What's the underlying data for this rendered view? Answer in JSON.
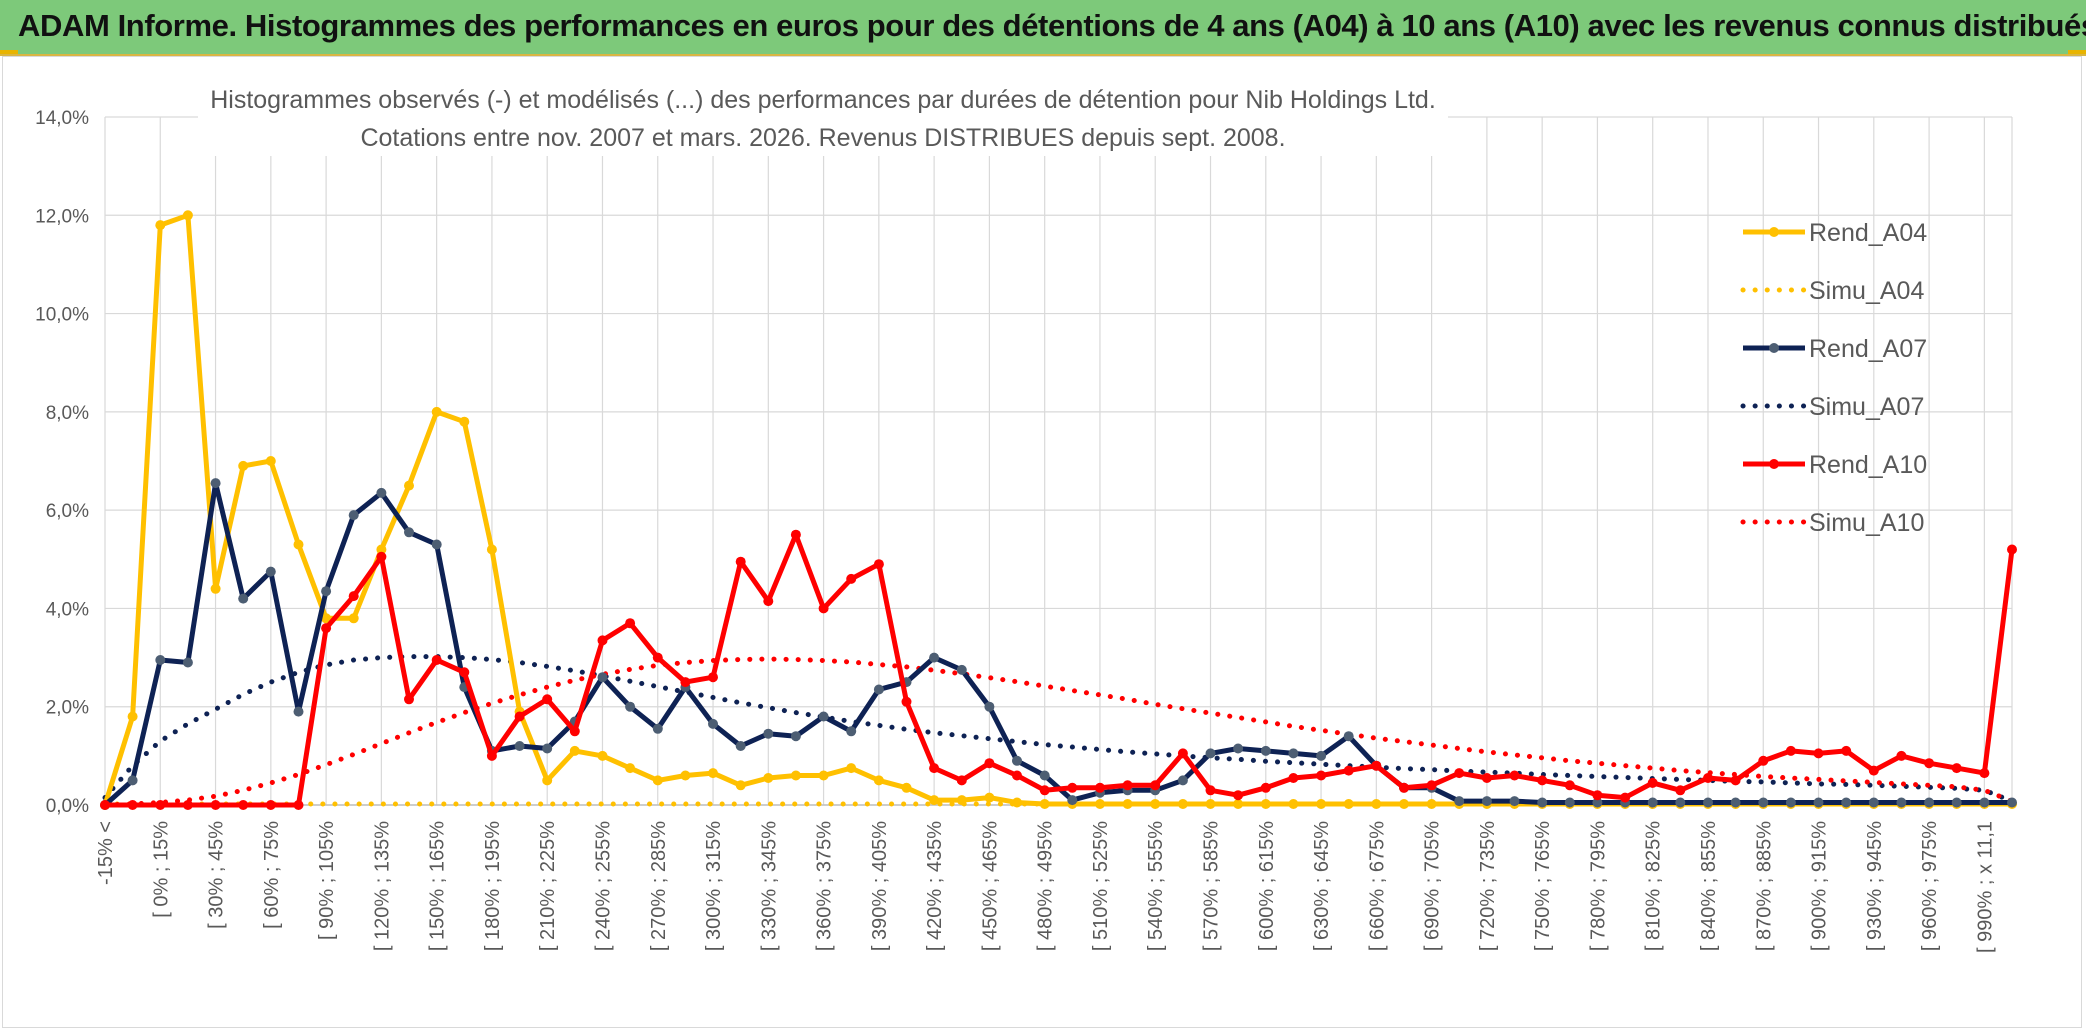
{
  "header": {
    "title": "ADAM Informe. Histogrammes des performances en euros pour des détentions de 4 ans (A04) à 10 ans (A10) avec les revenus connus distribués"
  },
  "colors": {
    "banner": "#7dc97a",
    "A04": "#ffc000",
    "A07": "#0e2254",
    "A07_marker": "#4d5e73",
    "A10": "#ff0000",
    "grid": "#d9d9d9",
    "text": "#595959"
  },
  "chart_data": {
    "type": "line",
    "title_line1": "Histogrammes observés (-) et modélisés (...) des performances par durées de détention pour Nib Holdings Ltd.",
    "title_line2": "Cotations entre nov. 2007 et mars. 2026. Revenus DISTRIBUES depuis sept. 2008.",
    "xlabel": "",
    "ylabel": "",
    "ylim": [
      0,
      14
    ],
    "y_ticks": [
      "0,0%",
      "2,0%",
      "4,0%",
      "6,0%",
      "8,0%",
      "10,0%",
      "12,0%",
      "14,0%"
    ],
    "x_labels_shown": [
      "-15% <",
      "[ 0% ; 15%",
      "[ 30% ; 45%",
      "[ 60% ; 75%",
      "[ 90% ; 105%",
      "[ 120% ; 135%",
      "[ 150% ; 165%",
      "[ 180% ; 195%",
      "[ 210% ; 225%",
      "[ 240% ; 255%",
      "[ 270% ; 285%",
      "[ 300% ; 315%",
      "[ 330% ; 345%",
      "[ 360% ; 375%",
      "[ 390% ; 405%",
      "[ 420% ; 435%",
      "[ 450% ; 465%",
      "[ 480% ; 495%",
      "[ 510% ; 525%",
      "[ 540% ; 555%",
      "[ 570% ; 585%",
      "[ 600% ; 615%",
      "[ 630% ; 645%",
      "[ 660% ; 675%",
      "[ 690% ; 705%",
      "[ 720% ; 735%",
      "[ 750% ; 765%",
      "[ 780% ; 795%",
      "[ 810% ; 825%",
      "[ 840% ; 855%",
      "[ 870% ; 885%",
      "[ 900% ; 915%",
      "[ 930% ; 945%",
      "[ 960% ; 975%",
      "[ 990% ; x 11,1"
    ],
    "n_points": 70,
    "series": [
      {
        "name": "Rend_A04",
        "style": "solid",
        "color": "#ffc000",
        "values": [
          0.0,
          1.8,
          11.8,
          12.0,
          4.4,
          6.9,
          7.0,
          5.3,
          3.8,
          3.8,
          5.2,
          6.5,
          8.0,
          7.8,
          5.2,
          1.9,
          0.5,
          1.1,
          1.0,
          0.75,
          0.5,
          0.6,
          0.65,
          0.4,
          0.55,
          0.6,
          0.6,
          0.75,
          0.5,
          0.35,
          0.1,
          0.1,
          0.15,
          0.05,
          0.02,
          0.02,
          0.02,
          0.02,
          0.02,
          0.02,
          0.02,
          0.02,
          0.02,
          0.02,
          0.02,
          0.02,
          0.02,
          0.02,
          0.02,
          0.02,
          0.02,
          0.02,
          0.02,
          0.02,
          0.02,
          0.02,
          0.02,
          0.02,
          0.02,
          0.02,
          0.02,
          0.02,
          0.02,
          0.02,
          0.02,
          0.02,
          0.02,
          0.02,
          0.02,
          0.02
        ]
      },
      {
        "name": "Simu_A04",
        "style": "dotted",
        "color": "#ffc000",
        "values": [
          0.02,
          0.02,
          0.02,
          0.02,
          0.02,
          0.02,
          0.02,
          0.02,
          0.02,
          0.02,
          0.02,
          0.02,
          0.02,
          0.02,
          0.02,
          0.02,
          0.02,
          0.02,
          0.02,
          0.02,
          0.02,
          0.02,
          0.02,
          0.02,
          0.02,
          0.02,
          0.02,
          0.02,
          0.02,
          0.02,
          0.02,
          0.02,
          0.02,
          0.02,
          0.02,
          0.02,
          0.02,
          0.02,
          0.02,
          0.02,
          0.02,
          0.02,
          0.02,
          0.02,
          0.02,
          0.02,
          0.02,
          0.02,
          0.02,
          0.02,
          0.02,
          0.02,
          0.02,
          0.02,
          0.02,
          0.02,
          0.02,
          0.02,
          0.02,
          0.02,
          0.02,
          0.02,
          0.02,
          0.02,
          0.02,
          0.02,
          0.02,
          0.02,
          0.02,
          0.02
        ]
      },
      {
        "name": "Rend_A07",
        "style": "solid",
        "color": "#0e2254",
        "values": [
          0.0,
          0.5,
          2.95,
          2.9,
          6.55,
          4.2,
          4.75,
          1.9,
          4.35,
          5.9,
          6.35,
          5.55,
          5.3,
          2.4,
          1.1,
          1.2,
          1.15,
          1.7,
          2.6,
          2.0,
          1.55,
          2.4,
          1.65,
          1.2,
          1.45,
          1.4,
          1.8,
          1.5,
          2.35,
          2.5,
          3.0,
          2.75,
          2.0,
          0.9,
          0.6,
          0.1,
          0.25,
          0.3,
          0.3,
          0.5,
          1.05,
          1.15,
          1.1,
          1.05,
          1.0,
          1.4,
          0.8,
          0.35,
          0.35,
          0.08,
          0.08,
          0.08,
          0.05,
          0.05,
          0.05,
          0.05,
          0.05,
          0.05,
          0.05,
          0.05,
          0.05,
          0.05,
          0.05,
          0.05,
          0.05,
          0.05,
          0.05,
          0.05,
          0.05,
          0.05
        ]
      },
      {
        "name": "Simu_A07",
        "style": "dotted",
        "color": "#0e2254",
        "values": [
          0.15,
          0.8,
          1.3,
          1.65,
          1.95,
          2.25,
          2.5,
          2.7,
          2.85,
          2.95,
          3.0,
          3.02,
          3.02,
          3.0,
          2.96,
          2.9,
          2.82,
          2.73,
          2.63,
          2.52,
          2.41,
          2.3,
          2.19,
          2.08,
          1.98,
          1.88,
          1.79,
          1.7,
          1.62,
          1.54,
          1.47,
          1.41,
          1.35,
          1.29,
          1.23,
          1.18,
          1.13,
          1.08,
          1.04,
          1.0,
          0.96,
          0.93,
          0.89,
          0.86,
          0.83,
          0.8,
          0.77,
          0.74,
          0.72,
          0.69,
          0.67,
          0.65,
          0.62,
          0.6,
          0.58,
          0.56,
          0.54,
          0.52,
          0.5,
          0.48,
          0.47,
          0.45,
          0.43,
          0.42,
          0.4,
          0.38,
          0.36,
          0.34,
          0.3,
          0.08
        ]
      },
      {
        "name": "Rend_A10",
        "style": "solid",
        "color": "#ff0000",
        "values": [
          0.0,
          0.0,
          0.0,
          0.0,
          0.0,
          0.0,
          0.0,
          0.0,
          3.6,
          4.25,
          5.05,
          2.15,
          2.95,
          2.7,
          1.0,
          1.8,
          2.15,
          1.5,
          3.35,
          3.7,
          3.0,
          2.5,
          2.6,
          4.95,
          4.15,
          5.5,
          4.0,
          4.6,
          4.9,
          2.1,
          0.75,
          0.5,
          0.85,
          0.6,
          0.3,
          0.35,
          0.35,
          0.4,
          0.4,
          1.05,
          0.3,
          0.2,
          0.35,
          0.55,
          0.6,
          0.7,
          0.8,
          0.35,
          0.4,
          0.65,
          0.55,
          0.6,
          0.5,
          0.4,
          0.2,
          0.15,
          0.45,
          0.3,
          0.55,
          0.5,
          0.9,
          1.1,
          1.05,
          1.1,
          0.7,
          1.0,
          0.85,
          0.75,
          0.65,
          5.2
        ]
      },
      {
        "name": "Simu_A10",
        "style": "dotted",
        "color": "#ff0000",
        "values": [
          0.0,
          0.02,
          0.05,
          0.1,
          0.18,
          0.3,
          0.45,
          0.62,
          0.82,
          1.03,
          1.25,
          1.47,
          1.68,
          1.88,
          2.07,
          2.24,
          2.4,
          2.54,
          2.66,
          2.76,
          2.84,
          2.9,
          2.94,
          2.96,
          2.97,
          2.96,
          2.94,
          2.91,
          2.86,
          2.81,
          2.74,
          2.67,
          2.59,
          2.51,
          2.42,
          2.33,
          2.24,
          2.15,
          2.05,
          1.96,
          1.87,
          1.78,
          1.69,
          1.6,
          1.52,
          1.44,
          1.36,
          1.29,
          1.22,
          1.15,
          1.08,
          1.02,
          0.96,
          0.9,
          0.85,
          0.8,
          0.75,
          0.7,
          0.66,
          0.62,
          0.58,
          0.55,
          0.52,
          0.49,
          0.46,
          0.43,
          0.4,
          0.37,
          0.3,
          0.08
        ]
      }
    ],
    "legend": [
      {
        "label": "Rend_A04",
        "series": 0
      },
      {
        "label": "Simu_A04",
        "series": 1
      },
      {
        "label": "Rend_A07",
        "series": 2
      },
      {
        "label": "Simu_A07",
        "series": 3
      },
      {
        "label": "Rend_A10",
        "series": 4
      },
      {
        "label": "Simu_A10",
        "series": 5
      }
    ],
    "legend_position": "right",
    "grid": true
  }
}
